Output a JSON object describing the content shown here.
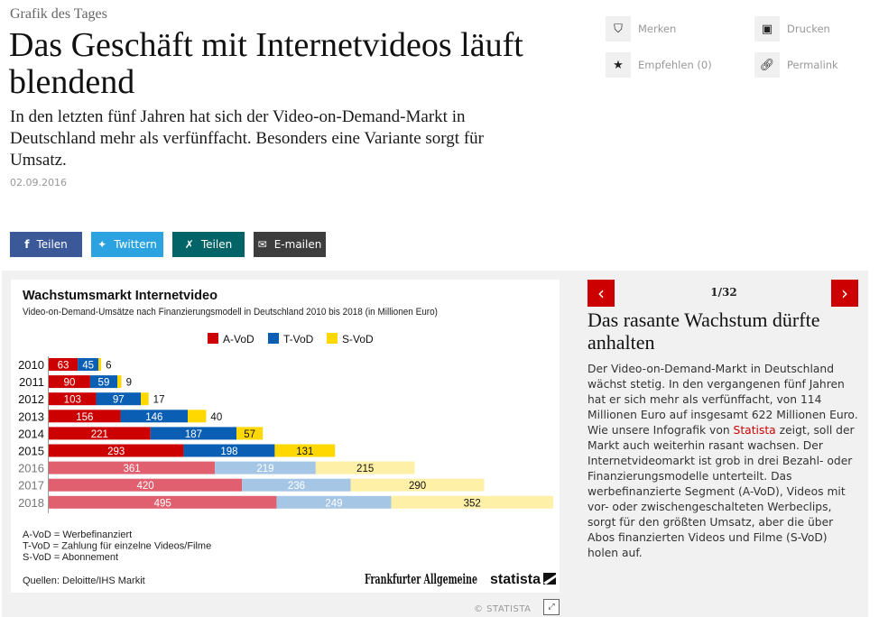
{
  "article": {
    "kicker": "Grafik des Tages",
    "headline": "Das Geschäft mit Internetvideos läuft blendend",
    "teaser": "In den letzten fünf Jahren hat sich der Video-on-Demand-Markt in Deutschland mehr als verfünffacht. Besonders eine Variante sorgt für Umsatz.",
    "date": "02.09.2016"
  },
  "tools": {
    "merken": {
      "label": "Merken",
      "icon": "bookmark-icon"
    },
    "drucken": {
      "label": "Drucken",
      "icon": "print-icon"
    },
    "empfehlen": {
      "label": "Empfehlen (0)",
      "icon": "star-icon"
    },
    "permalink": {
      "label": "Permalink",
      "icon": "link-icon"
    }
  },
  "share": {
    "facebook": {
      "label": "Teilen",
      "icon": "f",
      "color": "#3b5998"
    },
    "twitter": {
      "label": "Twittern",
      "icon": "🐦",
      "color": "#2aa3e0"
    },
    "xing": {
      "label": "Teilen",
      "icon": "✗",
      "color": "#026466"
    },
    "email": {
      "label": "E-mailen",
      "icon": "✉",
      "color": "#3d3d3d"
    }
  },
  "gallery": {
    "counter": "1/32",
    "prev_icon": "‹",
    "next_icon": "›",
    "title": "Das rasante Wachstum dürfte anhalten",
    "text_before_link": "Der Video-on-Demand-Markt in Deutschland wächst stetig. In den vergangenen fünf Jahren hat er sich mehr als verfünffacht, von 114 Millionen Euro auf insgesamt 622 Millionen Euro. Wie unsere Infografik von ",
    "link_text": "Statista",
    "text_after_link": " zeigt, soll der Markt auch weiterhin rasant wachsen. Der Internetvideomarkt ist grob in drei Bezahl- oder Finanzierungsmodelle unterteilt. Das werbefinanzierte Segment (A-VoD), Videos mit vor- oder zwischengeschalteten Werbeclips, sorgt für den größten Umsatz, aber die über Abos finanzierten Videos und Filme (S-VoD) holen auf.",
    "copyright": "© STATISTA",
    "fullscreen_icon": "⤢"
  },
  "chart_data": {
    "type": "bar",
    "orientation": "horizontal",
    "stacked": true,
    "title": "Wachstumsmarkt Internetvideo",
    "subtitle": "Video-on-Demand-Umsätze nach Finanzierungsmodell in Deutschland 2010 bis 2018 (in Millionen Euro)",
    "categories": [
      "2010",
      "2011",
      "2012",
      "2013",
      "2014",
      "2015",
      "2016",
      "2017",
      "2018"
    ],
    "forecast_from": "2016",
    "series": [
      {
        "name": "A-VoD",
        "color": "#cc0000",
        "forecast_color": "#e06070",
        "values": [
          63,
          90,
          103,
          156,
          221,
          293,
          361,
          420,
          495
        ]
      },
      {
        "name": "T-VoD",
        "color": "#0a5fb4",
        "forecast_color": "#a6c6e6",
        "values": [
          45,
          59,
          97,
          146,
          187,
          198,
          219,
          236,
          249
        ]
      },
      {
        "name": "S-VoD",
        "color": "#ffd800",
        "forecast_color": "#fff0a8",
        "values": [
          6,
          9,
          17,
          40,
          57,
          131,
          215,
          290,
          352
        ]
      }
    ],
    "legend_position": "top-center",
    "notes": [
      "A-VoD = Werbefinanziert",
      "T-VoD = Zahlung für einzelne Videos/Filme",
      "S-VoD = Abonnement"
    ],
    "source": "Quellen: Deloitte/IHS Markit",
    "brands": [
      "Frankfurter Allgemeine",
      "statista"
    ],
    "xlim": [
      0,
      1096
    ]
  }
}
